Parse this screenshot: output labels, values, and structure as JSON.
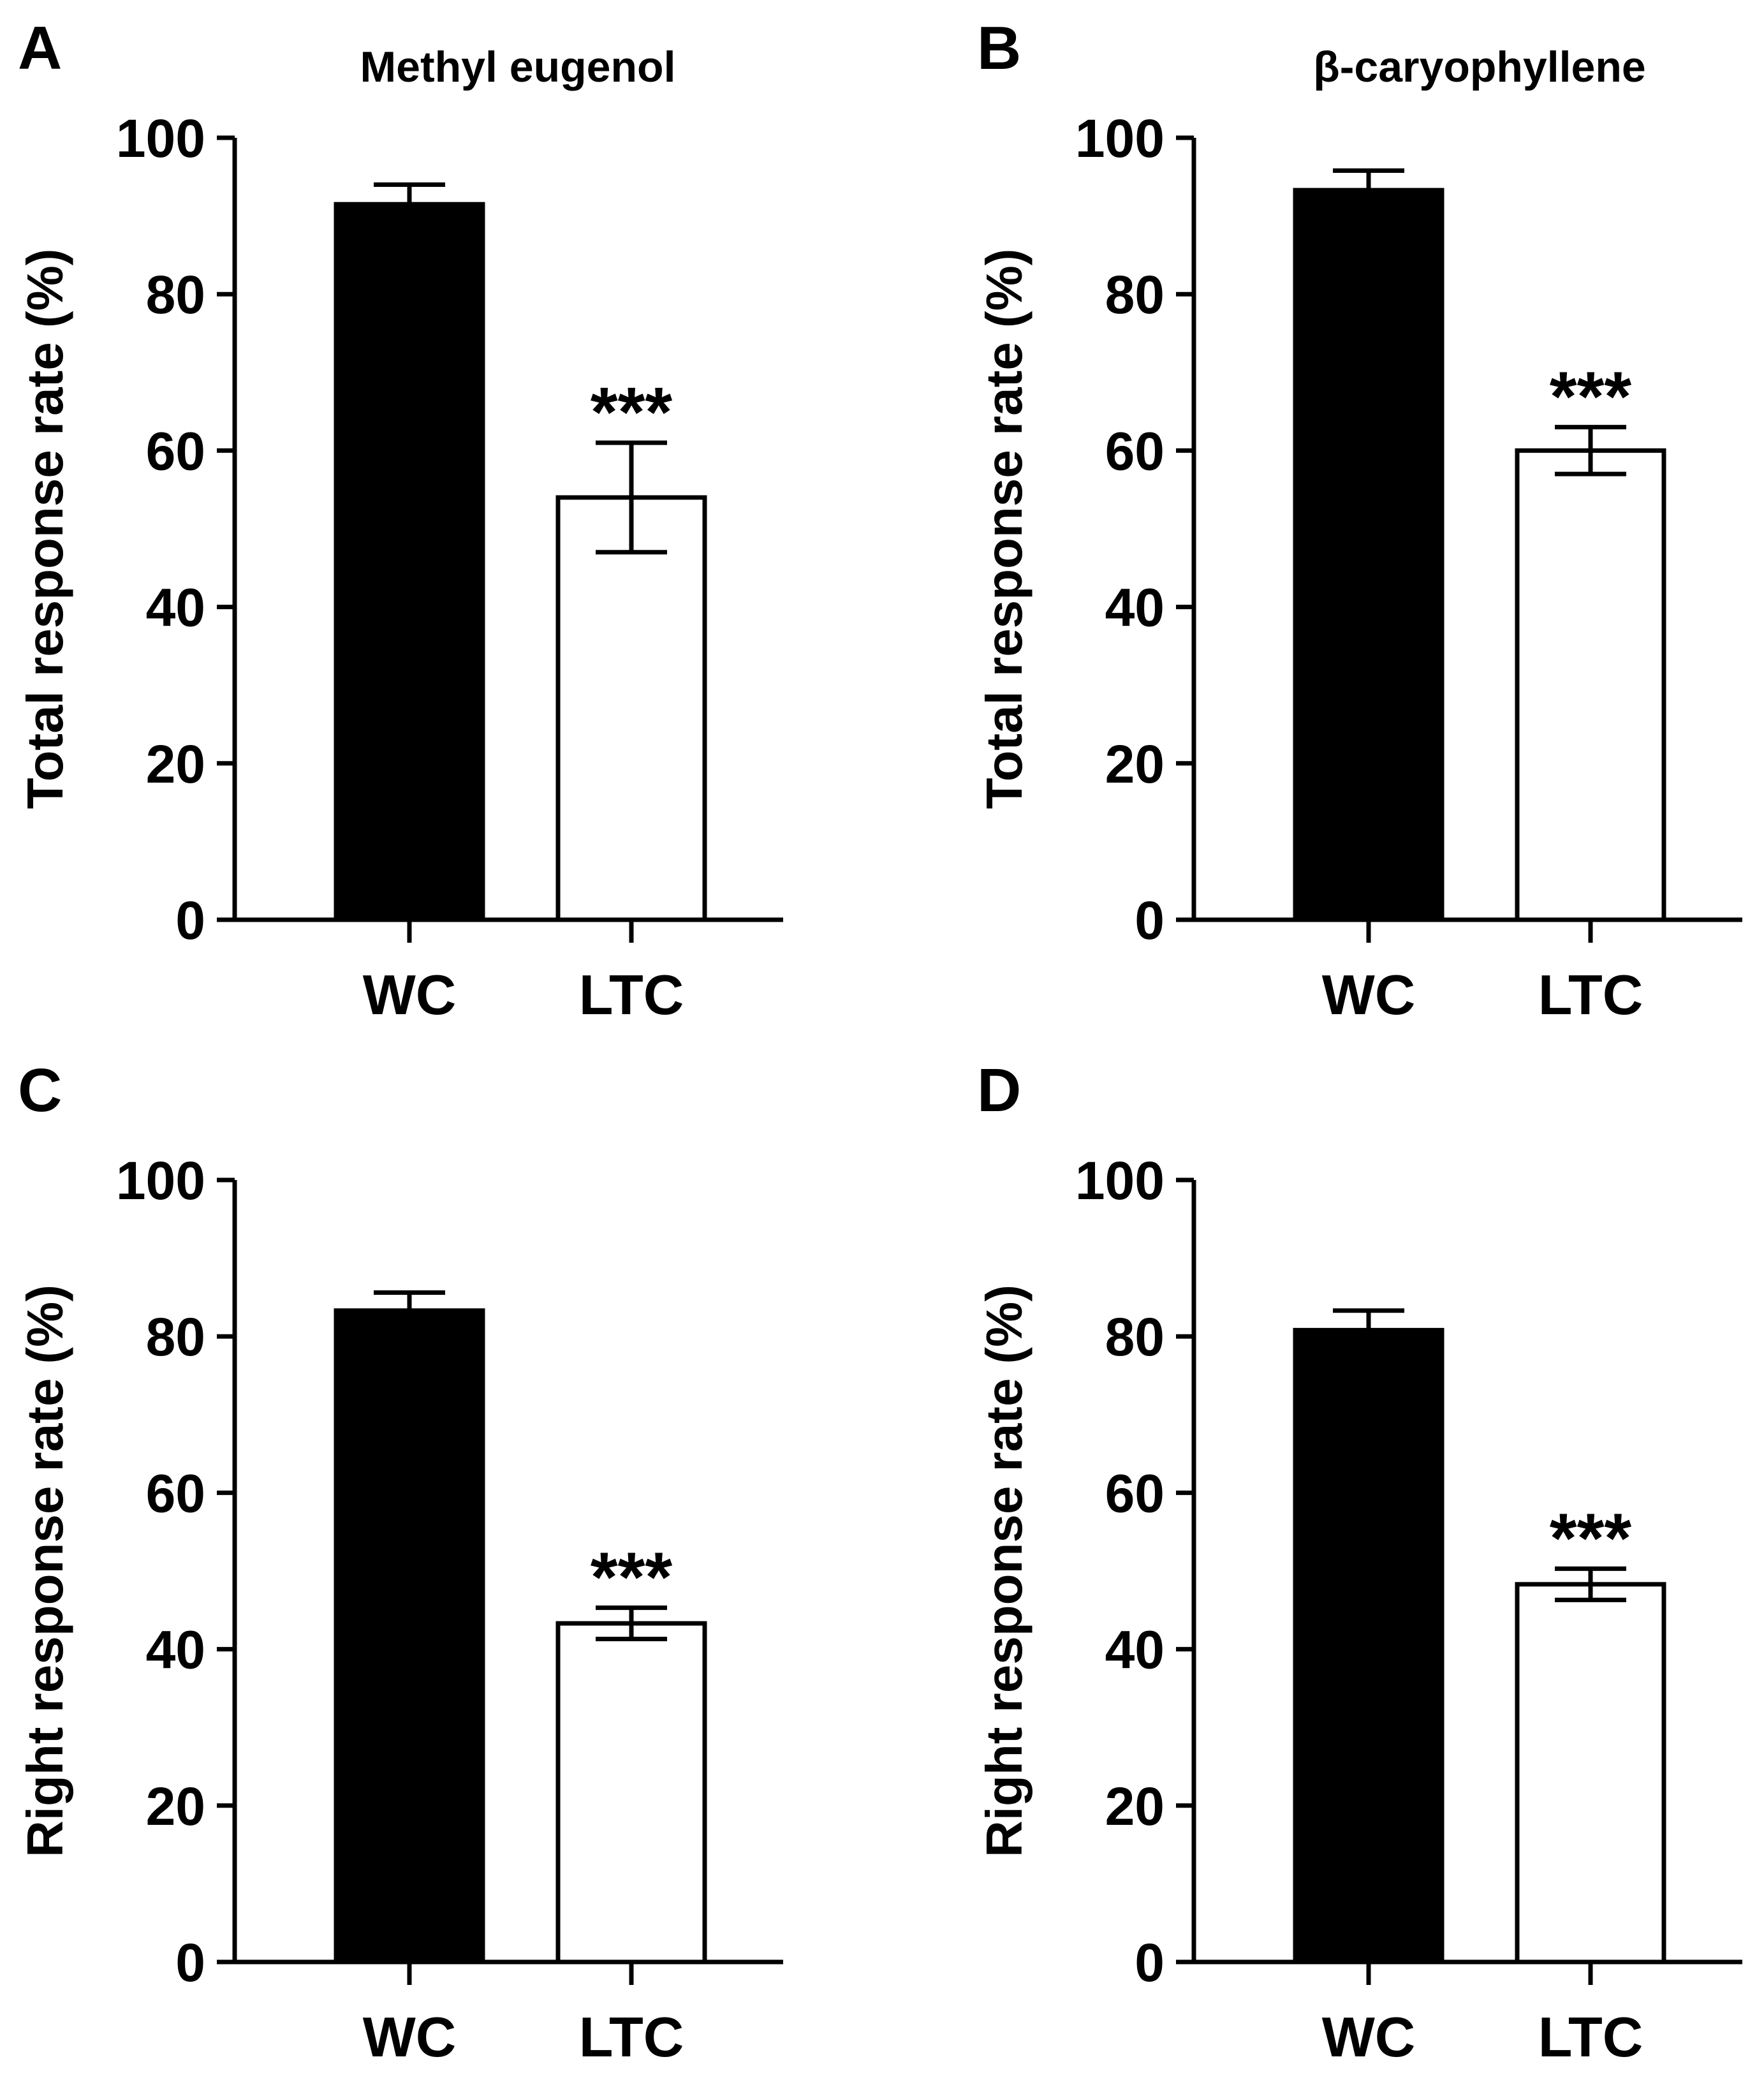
{
  "chart_data": [
    {
      "panel": "A",
      "type": "bar",
      "title": "Methyl eugenol",
      "ylabel": "Total response rate (%)",
      "xlabel": "",
      "ylim": [
        0,
        100
      ],
      "yticks": [
        0,
        20,
        40,
        60,
        80,
        100
      ],
      "categories": [
        "WC",
        "LTC"
      ],
      "values": [
        91.5,
        54
      ],
      "errors": [
        2.5,
        7
      ],
      "fills": [
        "#000000",
        "#ffffff"
      ],
      "annotations": [
        "",
        "***"
      ],
      "grid": false
    },
    {
      "panel": "B",
      "type": "bar",
      "title": "β-caryophyllene",
      "ylabel": "Total response rate (%)",
      "xlabel": "",
      "ylim": [
        0,
        100
      ],
      "yticks": [
        0,
        20,
        40,
        60,
        80,
        100
      ],
      "categories": [
        "WC",
        "LTC"
      ],
      "values": [
        93.3,
        60
      ],
      "errors": [
        2.5,
        3
      ],
      "fills": [
        "#000000",
        "#ffffff"
      ],
      "annotations": [
        "",
        "***"
      ],
      "grid": false
    },
    {
      "panel": "C",
      "type": "bar",
      "title": "",
      "ylabel": "Right response rate (%)",
      "xlabel": "",
      "ylim": [
        0,
        100
      ],
      "yticks": [
        0,
        20,
        40,
        60,
        80,
        100
      ],
      "categories": [
        "WC",
        "LTC"
      ],
      "values": [
        83.3,
        43.3
      ],
      "errors": [
        2.3,
        2
      ],
      "fills": [
        "#000000",
        "#ffffff"
      ],
      "annotations": [
        "",
        "***"
      ],
      "grid": false
    },
    {
      "panel": "D",
      "type": "bar",
      "title": "",
      "ylabel": "Right response rate (%)",
      "xlabel": "",
      "ylim": [
        0,
        100
      ],
      "yticks": [
        0,
        20,
        40,
        60,
        80,
        100
      ],
      "categories": [
        "WC",
        "LTC"
      ],
      "values": [
        80.8,
        48.3
      ],
      "errors": [
        2.5,
        2
      ],
      "fills": [
        "#000000",
        "#ffffff"
      ],
      "annotations": [
        "",
        "***"
      ],
      "grid": false
    }
  ]
}
